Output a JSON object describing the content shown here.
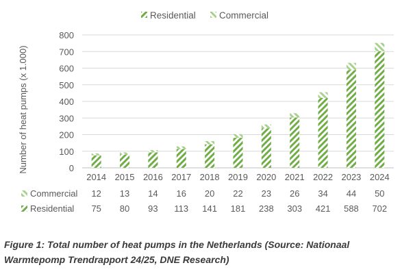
{
  "chart_data": {
    "type": "bar",
    "stacked": true,
    "categories": [
      "2014",
      "2015",
      "2016",
      "2017",
      "2018",
      "2019",
      "2020",
      "2021",
      "2022",
      "2023",
      "2024"
    ],
    "series": [
      {
        "name": "Residential",
        "values": [
          75,
          80,
          93,
          113,
          141,
          181,
          238,
          303,
          421,
          588,
          702
        ],
        "color": "#70ad47",
        "pattern": "diagonal-stripes"
      },
      {
        "name": "Commercial",
        "values": [
          12,
          13,
          14,
          16,
          20,
          22,
          23,
          26,
          34,
          44,
          50
        ],
        "color": "#a9d18e",
        "pattern": "diagonal-stripes"
      }
    ],
    "ylabel": "Number of heat pumps (x 1.000)",
    "ylim": [
      0,
      800
    ],
    "yticks": [
      0,
      100,
      200,
      300,
      400,
      500,
      600,
      700,
      800
    ],
    "grid": true,
    "legend": "top-center",
    "data_table": true
  },
  "caption": "Figure 1: Total number of heat pumps in the Netherlands (Source: Nationaal Warmtepomp Trendrapport 24/25, DNE Research)"
}
